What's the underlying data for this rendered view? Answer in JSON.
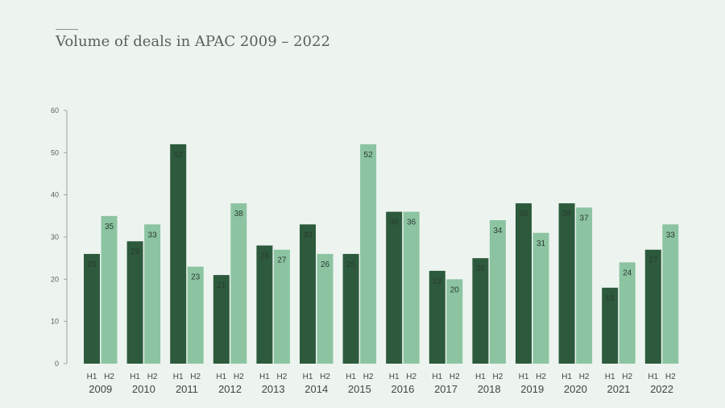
{
  "chart_data": {
    "type": "bar",
    "title": "Volume of deals in APAC 2009 – 2022",
    "categories": [
      "2009",
      "2010",
      "2011",
      "2012",
      "2013",
      "2014",
      "2015",
      "2016",
      "2017",
      "2018",
      "2019",
      "2020",
      "2021",
      "2022"
    ],
    "series": [
      {
        "name": "H1",
        "color": "#2d5a3d",
        "values": [
          26,
          29,
          52,
          21,
          28,
          33,
          26,
          36,
          22,
          25,
          38,
          38,
          18,
          27
        ]
      },
      {
        "name": "H2",
        "color": "#8cc4a2",
        "values": [
          35,
          33,
          23,
          38,
          27,
          26,
          52,
          36,
          20,
          34,
          31,
          37,
          24,
          33
        ]
      }
    ],
    "ylim": [
      0,
      60
    ],
    "yticks": [
      0,
      10,
      20,
      30,
      40,
      50,
      60
    ],
    "grid": false,
    "legend": "none"
  }
}
